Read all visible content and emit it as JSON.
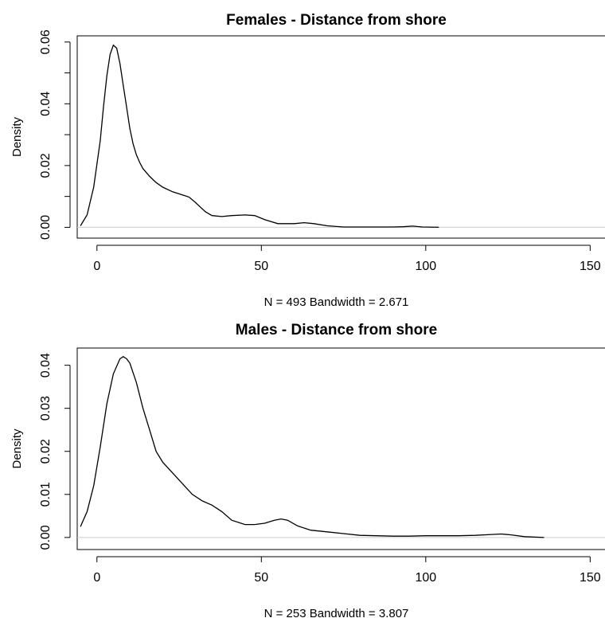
{
  "chart_data": [
    {
      "type": "line",
      "title": "Females - Distance from shore",
      "xlabel": "N = 493   Bandwidth = 2.671",
      "ylabel": "Density",
      "xlim": [
        -6,
        155
      ],
      "ylim": [
        -0.0035,
        0.062
      ],
      "xticks": [
        0,
        50,
        100,
        150
      ],
      "yticks": [
        0.0,
        0.01,
        0.02,
        0.03,
        0.04,
        0.05,
        0.06
      ],
      "ytick_labels": [
        "0.00",
        "",
        "0.02",
        "",
        "0.04",
        "",
        "0.06"
      ],
      "grid": false,
      "series": [
        {
          "x": [
            -5,
            -3,
            -1,
            1,
            2,
            3,
            4,
            5,
            6,
            7,
            8,
            9,
            10,
            11,
            12,
            13,
            14,
            16,
            18,
            20,
            23,
            26,
            28,
            30,
            33,
            35,
            38,
            41,
            45,
            48,
            51,
            55,
            60,
            63,
            66,
            70,
            75,
            80,
            85,
            90,
            93,
            96,
            99,
            104
          ],
          "y": [
            0.0005,
            0.004,
            0.013,
            0.028,
            0.039,
            0.049,
            0.056,
            0.059,
            0.058,
            0.053,
            0.046,
            0.039,
            0.032,
            0.027,
            0.0235,
            0.021,
            0.019,
            0.0165,
            0.0145,
            0.013,
            0.0115,
            0.0105,
            0.0098,
            0.008,
            0.005,
            0.0038,
            0.0035,
            0.0038,
            0.004,
            0.0038,
            0.0025,
            0.0012,
            0.0012,
            0.0015,
            0.0012,
            0.0005,
            0.0001,
            0.0001,
            0.0001,
            0.0001,
            0.0002,
            0.0004,
            0.0001,
            0.0
          ]
        }
      ]
    },
    {
      "type": "line",
      "title": "Males - Distance from shore",
      "xlabel": "N = 253   Bandwidth = 3.807",
      "ylabel": "Density",
      "xlim": [
        -6,
        155
      ],
      "ylim": [
        -0.0028,
        0.044
      ],
      "xticks": [
        0,
        50,
        100,
        150
      ],
      "yticks": [
        0.0,
        0.01,
        0.02,
        0.03,
        0.04
      ],
      "ytick_labels": [
        "0.00",
        "0.01",
        "0.02",
        "0.03",
        "0.04"
      ],
      "grid": false,
      "series": [
        {
          "x": [
            -5,
            -3,
            -1,
            1,
            3,
            5,
            7,
            8,
            9,
            10,
            12,
            14,
            16,
            18,
            20,
            23,
            26,
            29,
            32,
            35,
            38,
            41,
            45,
            48,
            51,
            54,
            56,
            58,
            61,
            65,
            70,
            75,
            80,
            85,
            90,
            95,
            100,
            105,
            110,
            115,
            120,
            123,
            126,
            130,
            136
          ],
          "y": [
            0.0025,
            0.006,
            0.012,
            0.021,
            0.031,
            0.038,
            0.0415,
            0.042,
            0.0415,
            0.0405,
            0.036,
            0.03,
            0.025,
            0.02,
            0.0175,
            0.015,
            0.0125,
            0.01,
            0.0085,
            0.0075,
            0.006,
            0.004,
            0.003,
            0.003,
            0.0033,
            0.004,
            0.0043,
            0.004,
            0.0027,
            0.0017,
            0.0013,
            0.0009,
            0.0005,
            0.0004,
            0.0003,
            0.0003,
            0.0004,
            0.0004,
            0.0004,
            0.0005,
            0.0007,
            0.0008,
            0.0006,
            0.0002,
            0.0
          ]
        }
      ]
    }
  ]
}
